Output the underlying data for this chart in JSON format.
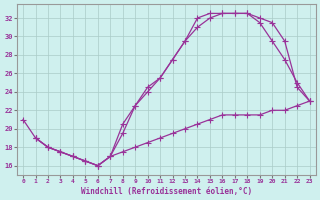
{
  "xlabel": "Windchill (Refroidissement éolien,°C)",
  "bg_color": "#cff0ee",
  "line_color": "#993399",
  "grid_color": "#aaccc8",
  "xlim": [
    -0.5,
    23.5
  ],
  "ylim": [
    15.0,
    33.5
  ],
  "yticks": [
    16,
    18,
    20,
    22,
    24,
    26,
    28,
    30,
    32
  ],
  "xticks": [
    0,
    1,
    2,
    3,
    4,
    5,
    6,
    7,
    8,
    9,
    10,
    11,
    12,
    13,
    14,
    15,
    16,
    17,
    18,
    19,
    20,
    21,
    22,
    23
  ],
  "line1_x": [
    0,
    1,
    2,
    3,
    4,
    5,
    6,
    7,
    8,
    9,
    10,
    11,
    12,
    13,
    14,
    15,
    16,
    17,
    18,
    19,
    20,
    21,
    22,
    23
  ],
  "line1_y": [
    21.0,
    19.0,
    18.0,
    17.5,
    17.0,
    16.5,
    16.0,
    17.0,
    19.5,
    22.5,
    24.5,
    25.5,
    27.5,
    29.5,
    32.0,
    32.5,
    32.5,
    32.5,
    32.5,
    32.0,
    31.5,
    29.5,
    24.5,
    23.0
  ],
  "line2_x": [
    1,
    2,
    3,
    4,
    5,
    6,
    7,
    8,
    9,
    10,
    11,
    12,
    13,
    14,
    15,
    16,
    17,
    18,
    19,
    20,
    21,
    22,
    23
  ],
  "line2_y": [
    19.0,
    18.0,
    17.5,
    17.0,
    16.5,
    16.0,
    17.0,
    20.5,
    22.5,
    24.0,
    25.5,
    27.5,
    29.5,
    31.0,
    32.0,
    32.5,
    32.5,
    32.5,
    31.5,
    29.5,
    27.5,
    25.0,
    23.0
  ],
  "line3_x": [
    1,
    2,
    3,
    4,
    5,
    6,
    7,
    8,
    9,
    10,
    11,
    12,
    13,
    14,
    15,
    16,
    17,
    18,
    19,
    20,
    21,
    22,
    23
  ],
  "line3_y": [
    19.0,
    18.0,
    17.5,
    17.0,
    16.5,
    16.0,
    17.0,
    17.5,
    18.0,
    18.5,
    19.0,
    19.5,
    20.0,
    20.5,
    21.0,
    21.5,
    21.5,
    21.5,
    21.5,
    22.0,
    22.0,
    22.5,
    23.0
  ]
}
